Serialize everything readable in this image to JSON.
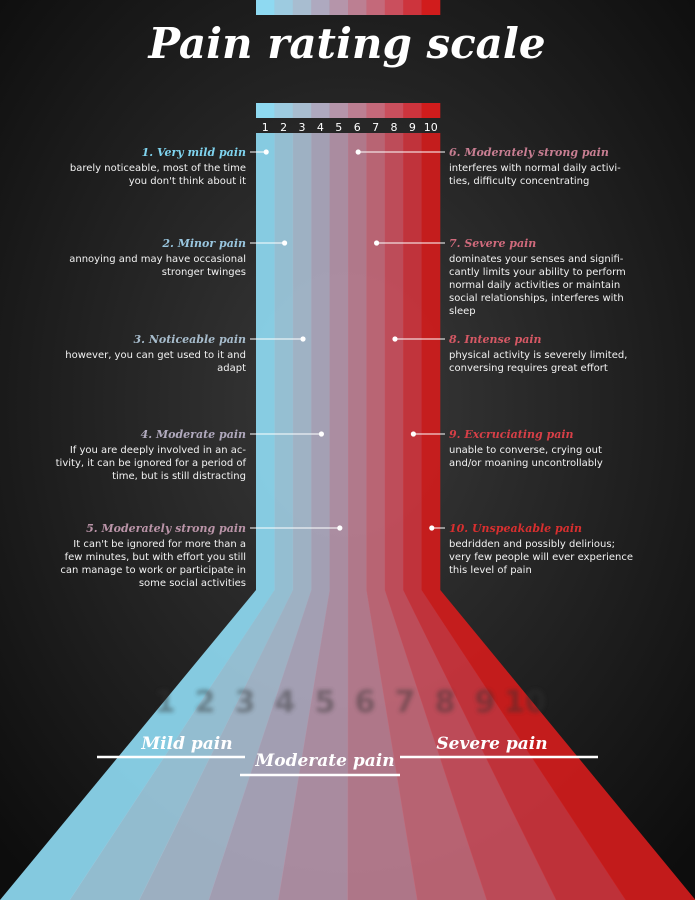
{
  "title": "Pain rating scale",
  "scale": [
    1,
    2,
    3,
    4,
    5,
    6,
    7,
    8,
    9,
    10
  ],
  "levels": [
    {
      "title": "1. Very mild pain",
      "description": [
        "barely noticeable, most of the time",
        "you don't think about it"
      ]
    },
    {
      "title": "2. Minor pain",
      "description": [
        "annoying and may have occasional",
        "stronger twinges"
      ]
    },
    {
      "title": "3. Noticeable pain",
      "description": [
        "however, you can get used to it and",
        "adapt"
      ]
    },
    {
      "title": "4. Moderate pain",
      "description": [
        "If you are deeply involved in an ac-",
        "tivity, it can be ignored for a period of",
        "time, but is still distracting"
      ]
    },
    {
      "title": "5. Moderately strong pain",
      "description": [
        "It can't be ignored for more than a",
        "few minutes, but with effort you still",
        "can manage to work or participate in",
        "some social activities"
      ]
    },
    {
      "title": "6. Moderately strong pain",
      "description": [
        "interferes with normal daily activi-",
        "ties, difficulty concentrating"
      ]
    },
    {
      "title": "7. Severe pain",
      "description": [
        "dominates your senses and signifi-",
        "cantly limits your ability to perform",
        "normal daily activities or maintain",
        "social relationships, interferes with",
        "sleep"
      ]
    },
    {
      "title": "8. Intense pain",
      "description": [
        "physical activity is severely limited,",
        "conversing requires great effort"
      ]
    },
    {
      "title": "9. Excruciating pain",
      "description": [
        "unable to converse, crying out",
        "and/or moaning uncontrollably"
      ]
    },
    {
      "title": "10. Unspeakable pain",
      "description": [
        "bedridden and possibly delirious;",
        "very few people will ever experience",
        "this level of pain"
      ]
    }
  ],
  "zones": [
    "Mild pain",
    "Moderate pain",
    "Severe pain"
  ]
}
